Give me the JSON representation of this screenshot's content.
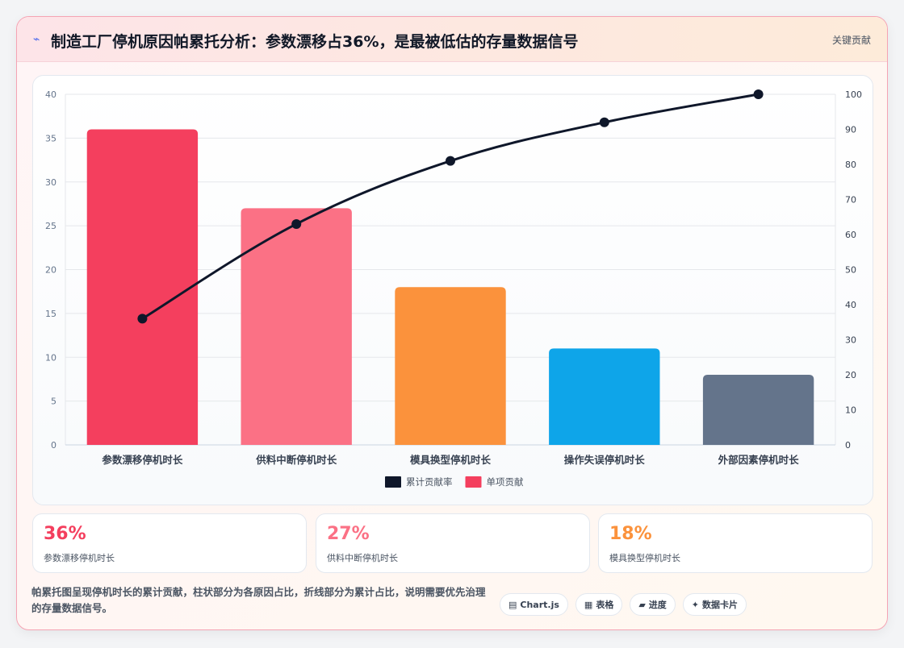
{
  "header": {
    "title_icon": "⌁",
    "title": "制造工厂停机原因帕累托分析：参数漂移占36%，是最被低估的存量数据信号",
    "link": "关键贡献"
  },
  "chart_data": {
    "type": "bar",
    "categories": [
      "参数漂移停机时长",
      "供料中断停机时长",
      "模具换型停机时长",
      "操作失误停机时长",
      "外部因素停机时长"
    ],
    "series": [
      {
        "name": "单项贡献",
        "type": "bar",
        "axis": "left",
        "values": [
          36,
          27,
          18,
          11,
          8
        ],
        "colors": [
          "#f43f5e",
          "#fb7185",
          "#fb923c",
          "#0ea5e9",
          "#64748b"
        ]
      },
      {
        "name": "累计贡献率",
        "type": "line",
        "axis": "right",
        "values": [
          36,
          63,
          81,
          92,
          100
        ],
        "color": "#0f172a"
      }
    ],
    "ylim_left": [
      0,
      40
    ],
    "yticks_left": [
      0,
      5,
      10,
      15,
      20,
      25,
      30,
      35,
      40
    ],
    "ylim_right": [
      0,
      100
    ],
    "yticks_right": [
      0,
      10,
      20,
      30,
      40,
      50,
      60,
      70,
      80,
      90,
      100
    ],
    "legend": [
      {
        "label": "累计贡献率",
        "color": "#0f172a"
      },
      {
        "label": "单项贡献",
        "color": "#f43f5e"
      }
    ],
    "legend_position": "bottom",
    "grid": true
  },
  "stats": [
    {
      "value": "36%",
      "label": "参数漂移停机时长",
      "color": "#f43f5e"
    },
    {
      "value": "27%",
      "label": "供料中断停机时长",
      "color": "#fb7185"
    },
    {
      "value": "18%",
      "label": "模具换型停机时长",
      "color": "#fb923c"
    }
  ],
  "description": "帕累托图呈现停机时长的累计贡献，柱状部分为各原因占比，折线部分为累计占比，说明需要优先治理的存量数据信号。",
  "chips": [
    {
      "icon": "▤",
      "label": "Chart.js"
    },
    {
      "icon": "▦",
      "label": "表格"
    },
    {
      "icon": "▰",
      "label": "进度"
    },
    {
      "icon": "✦",
      "label": "数据卡片"
    }
  ]
}
